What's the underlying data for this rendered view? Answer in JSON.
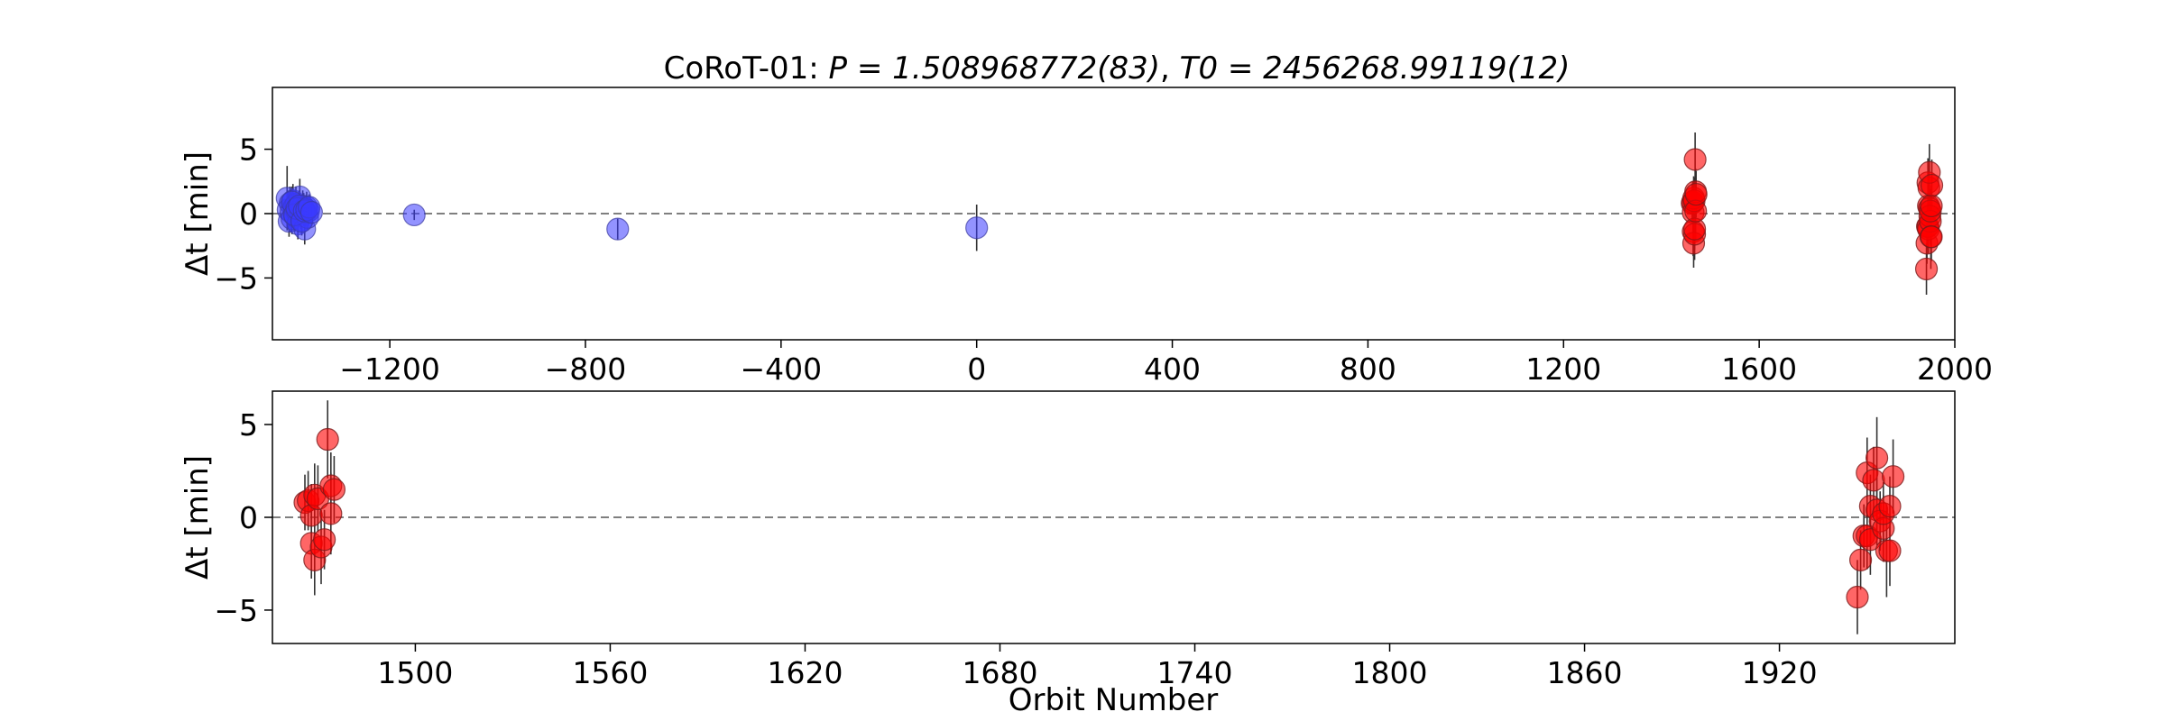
{
  "chart_data": [
    {
      "type": "scatter",
      "title_prefix": "CoRoT-01: ",
      "title_P": "P = 1.508968772(83)",
      "title_sep": ", ",
      "title_T0": "T0 = 2456268.99119(12)",
      "xlabel": "",
      "ylabel": "Δt [min]",
      "xlim": [
        -1440,
        2000
      ],
      "ylim": [
        -9.8,
        9.8
      ],
      "xticks": [
        -1200,
        -800,
        -400,
        0,
        400,
        800,
        1200,
        1600,
        2000
      ],
      "xtick_labels": [
        "−1200",
        "−800",
        "−400",
        "0",
        "400",
        "800",
        "1200",
        "1600",
        "2000"
      ],
      "yticks": [
        5,
        0,
        -5
      ],
      "ytick_labels": [
        "5",
        "0",
        "−5"
      ],
      "zero_line": "dashed",
      "colors": {
        "blue": "#3a3aff",
        "red": "#ff0000"
      },
      "series": [
        {
          "color": "blue",
          "x": [
            -1410,
            -1408,
            -1406,
            -1404,
            -1402,
            -1400,
            -1398,
            -1396,
            -1394,
            -1392,
            -1390,
            -1388,
            -1386,
            -1384,
            -1382,
            -1380,
            -1378,
            -1376,
            -1374,
            -1372,
            -1370,
            -1368,
            -1366,
            -1400,
            -1395,
            -1390,
            -1385,
            -1380,
            -1375,
            -1370,
            -1365,
            -1360,
            -1150,
            -734,
            0
          ],
          "y": [
            1.2,
            0.3,
            -0.6,
            0.8,
            0.1,
            -0.4,
            1.0,
            0.5,
            -0.2,
            0.7,
            0.2,
            -0.8,
            0.4,
            1.3,
            0.0,
            -0.5,
            0.6,
            0.3,
            -1.2,
            0.1,
            0.5,
            -0.3,
            0.2,
            0.9,
            -0.1,
            0.4,
            0.6,
            -0.6,
            0.2,
            0.3,
            0.5,
            0.1,
            -0.1,
            -1.2,
            -1.1
          ],
          "yerr": [
            2.5,
            1.4,
            1.2,
            1.3,
            1.5,
            1.2,
            1.3,
            1.1,
            1.2,
            1.4,
            1.1,
            1.2,
            1.3,
            1.4,
            1.2,
            1.1,
            1.2,
            1.3,
            1.2,
            1.1,
            1.2,
            1.0,
            1.1,
            1.2,
            1.1,
            1.0,
            1.2,
            1.1,
            1.0,
            1.1,
            1.0,
            1.0,
            0.4,
            0.8,
            1.8
          ]
        },
        {
          "color": "red",
          "x": [
            1463,
            1464,
            1465,
            1465,
            1466,
            1466,
            1467,
            1468,
            1468,
            1469,
            1470,
            1470,
            1471,
            1942,
            1943,
            1944,
            1945,
            1945,
            1946,
            1946,
            1947,
            1948,
            1948,
            1949,
            1950,
            1950,
            1951,
            1952,
            1952,
            1953
          ],
          "y": [
            0.8,
            0.9,
            0.1,
            -1.4,
            1.2,
            -2.3,
            1.0,
            -1.6,
            -1.2,
            4.2,
            1.7,
            0.2,
            1.5,
            -4.3,
            -2.3,
            -1.0,
            2.4,
            -1.0,
            0.6,
            -1.2,
            2.0,
            3.2,
            0.4,
            -0.2,
            -0.6,
            0.2,
            -1.8,
            0.6,
            -1.8,
            2.2
          ],
          "yerr": [
            1.5,
            1.6,
            1.7,
            1.9,
            1.7,
            1.9,
            1.8,
            2.0,
            1.6,
            2.1,
            1.8,
            2.2,
            1.8,
            2.0,
            1.6,
            1.7,
            1.9,
            1.8,
            1.7,
            1.9,
            1.8,
            2.2,
            1.9,
            1.6,
            1.8,
            1.7,
            2.5,
            1.6,
            1.9,
            2.0
          ]
        }
      ]
    },
    {
      "type": "scatter",
      "xlabel": "Orbit Number",
      "ylabel": "Δt [min]",
      "xlim": [
        1456,
        1974
      ],
      "ylim": [
        -6.8,
        6.8
      ],
      "xticks": [
        1500,
        1560,
        1620,
        1680,
        1740,
        1800,
        1860,
        1920
      ],
      "xtick_labels": [
        "1500",
        "1560",
        "1620",
        "1680",
        "1740",
        "1800",
        "1860",
        "1920"
      ],
      "yticks": [
        5,
        0,
        -5
      ],
      "ytick_labels": [
        "5",
        "0",
        "−5"
      ],
      "zero_line": "dashed",
      "colors": {
        "red": "#ff0000"
      },
      "series": [
        {
          "color": "red",
          "x": [
            1466,
            1467,
            1468,
            1468,
            1469,
            1469,
            1470,
            1471,
            1472,
            1473,
            1474,
            1474,
            1475,
            1944,
            1945,
            1946,
            1947,
            1947,
            1948,
            1948,
            1949,
            1950,
            1950,
            1951,
            1952,
            1952,
            1953,
            1954,
            1954,
            1955
          ],
          "y": [
            0.8,
            0.9,
            0.1,
            -1.4,
            1.2,
            -2.3,
            1.0,
            -1.6,
            -1.2,
            4.2,
            1.7,
            0.2,
            1.5,
            -4.3,
            -2.3,
            -1.0,
            2.4,
            -1.0,
            0.6,
            -1.2,
            2.0,
            3.2,
            0.4,
            -0.2,
            -0.6,
            0.2,
            -1.8,
            0.6,
            -1.8,
            2.2
          ],
          "yerr": [
            1.5,
            1.6,
            1.7,
            1.9,
            1.7,
            1.9,
            1.8,
            2.0,
            1.6,
            2.1,
            1.8,
            2.2,
            1.8,
            2.0,
            1.6,
            1.7,
            1.9,
            1.8,
            1.7,
            1.9,
            1.8,
            2.2,
            1.9,
            1.6,
            1.8,
            1.7,
            2.5,
            1.6,
            1.9,
            2.0
          ]
        }
      ]
    }
  ]
}
